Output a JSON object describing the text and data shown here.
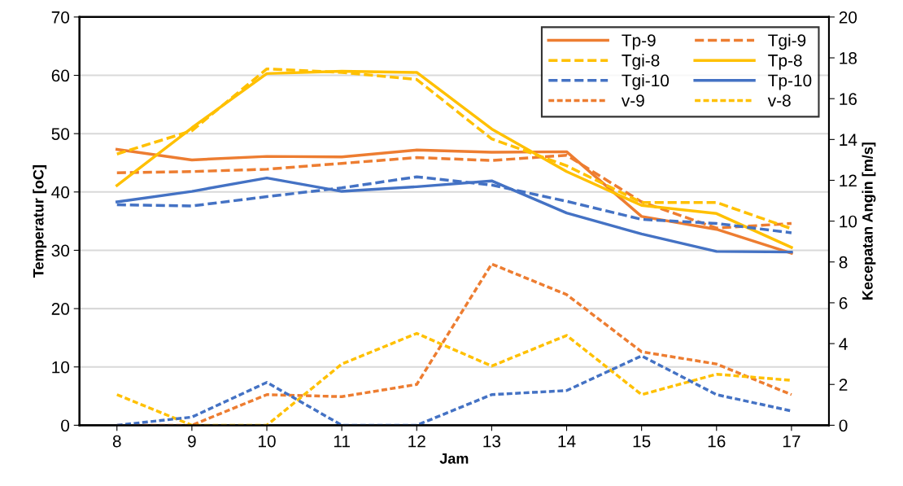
{
  "chart_data": {
    "type": "line",
    "xlabel": "Jam",
    "ylabel": "Temperatur [oC]",
    "y2label": "Kecepatan Angin [m/s]",
    "categories": [
      "8",
      "9",
      "10",
      "11",
      "12",
      "13",
      "14",
      "15",
      "16",
      "17"
    ],
    "ylim": [
      0,
      70
    ],
    "yticks": [
      0,
      10,
      20,
      30,
      40,
      50,
      60,
      70
    ],
    "y2lim": [
      0,
      20
    ],
    "y2ticks": [
      0,
      2,
      4,
      6,
      8,
      10,
      12,
      14,
      16,
      18,
      20
    ],
    "grid": "y",
    "legend": "top right",
    "marker": "none",
    "series": [
      {
        "name": "Tp-9",
        "color": "#ed7d31",
        "line_style": "solid",
        "values": [
          47.3,
          45.5,
          46.1,
          46.0,
          47.2,
          46.8,
          46.9,
          35.8,
          33.6,
          29.5
        ]
      },
      {
        "name": "Tgi-9",
        "color": "#ed7d31",
        "line_style": "dashed",
        "values": [
          43.3,
          43.5,
          43.9,
          44.9,
          45.9,
          45.4,
          46.3,
          38.3,
          33.8,
          34.6
        ]
      },
      {
        "name": "Tgi-8",
        "color": "#ffc000",
        "line_style": "dashed",
        "values": [
          46.5,
          50.5,
          61.1,
          60.5,
          59.3,
          49.1,
          44.5,
          38.2,
          38.2,
          33.7
        ]
      },
      {
        "name": "Tp-8",
        "color": "#ffc000",
        "line_style": "solid",
        "values": [
          41.1,
          51.0,
          60.3,
          60.7,
          60.5,
          50.8,
          43.5,
          37.7,
          36.3,
          30.5
        ]
      },
      {
        "name": "Tgi-10",
        "color": "#4472c4",
        "line_style": "dashed",
        "values": [
          37.8,
          37.6,
          39.2,
          40.7,
          42.6,
          41.2,
          38.4,
          35.3,
          34.6,
          33.0
        ]
      },
      {
        "name": "Tp-10",
        "color": "#4472c4",
        "line_style": "solid",
        "values": [
          38.3,
          40.1,
          42.4,
          40.1,
          40.9,
          41.9,
          36.4,
          32.8,
          29.8,
          29.7
        ]
      },
      {
        "name": "v-9",
        "color": "#ed7d31",
        "line_style": "dotted",
        "axis": "y2",
        "values": [
          0,
          0,
          1.5,
          1.4,
          2.0,
          7.9,
          6.4,
          3.6,
          3.0,
          1.5
        ]
      },
      {
        "name": "v-8",
        "color": "#ffc000",
        "line_style": "dotted",
        "axis": "y2",
        "values": [
          1.5,
          0,
          0,
          3.0,
          4.5,
          2.9,
          4.4,
          1.5,
          2.5,
          2.2
        ]
      },
      {
        "color": "#4472c4",
        "line_style": "dotted",
        "axis": "y2",
        "values": [
          0,
          0.4,
          2.1,
          0,
          0,
          1.5,
          1.7,
          3.4,
          1.5,
          0.7
        ]
      }
    ]
  }
}
